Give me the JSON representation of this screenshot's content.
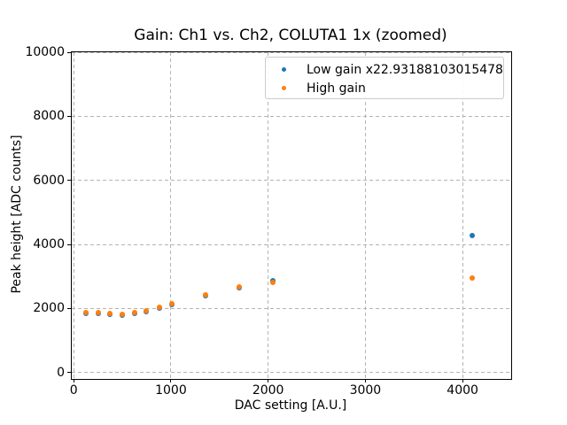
{
  "window": {
    "background": "#ffffff",
    "text_color": "#000000",
    "spine_color": "#000000"
  },
  "chart_data": {
    "type": "scatter",
    "title": "Gain: Ch1 vs. Ch2, COLUTA1 1x (zoomed)",
    "xlabel": "DAC setting [A.U.]",
    "ylabel": "Peak height [ADC counts]",
    "xlim": [
      -20,
      4500
    ],
    "ylim": [
      -200,
      10000
    ],
    "xticks": [
      0,
      1000,
      2000,
      3000,
      4000
    ],
    "yticks": [
      0,
      2000,
      4000,
      6000,
      8000,
      10000
    ],
    "grid": true,
    "grid_style": "dashed",
    "grid_color": "#b4b4b4",
    "legend": {
      "position": "upper right",
      "entries": [
        "Low gain x22.93188103015478",
        "High gain"
      ]
    },
    "series": [
      {
        "name": "Low gain x22.93188103015478",
        "color": "#1f77b4",
        "marker": "circle",
        "x": [
          125,
          250,
          375,
          500,
          625,
          750,
          885,
          1010,
          1355,
          1705,
          2050,
          4100
        ],
        "y": [
          1840,
          1840,
          1810,
          1790,
          1840,
          1900,
          2010,
          2115,
          2400,
          2655,
          2860,
          4285
        ]
      },
      {
        "name": "High gain",
        "color": "#ff7f0e",
        "marker": "circle",
        "x": [
          125,
          250,
          375,
          500,
          625,
          750,
          885,
          1010,
          1355,
          1705,
          2050,
          4100
        ],
        "y": [
          1870,
          1870,
          1845,
          1825,
          1870,
          1930,
          2040,
          2145,
          2435,
          2685,
          2805,
          2945
        ]
      }
    ]
  }
}
